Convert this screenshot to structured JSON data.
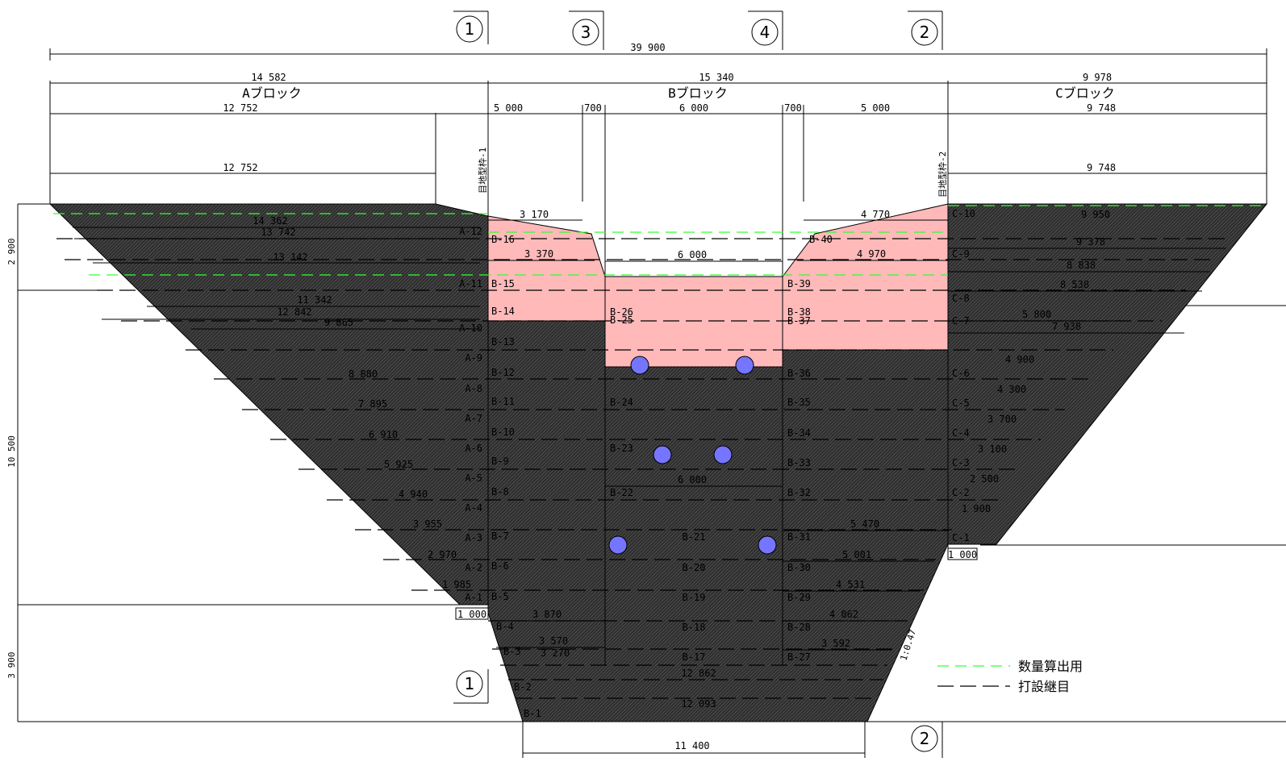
{
  "section_marks": [
    {
      "id": "mark-1-top",
      "label": "1"
    },
    {
      "id": "mark-3",
      "label": "3"
    },
    {
      "id": "mark-4",
      "label": "4"
    },
    {
      "id": "mark-2-top",
      "label": "2"
    },
    {
      "id": "mark-1-bottom",
      "label": "1"
    },
    {
      "id": "mark-2-bottom",
      "label": "2"
    }
  ],
  "top_dims": {
    "total": "39 900",
    "a_width": "14 582",
    "b_width": "15 340",
    "c_width": "9 978",
    "a_inner": "12 752",
    "a_inner2": "12 752",
    "b_left": "5 000",
    "b_gap_left": "700",
    "b_center": "6 000",
    "b_gap_right": "700",
    "b_right": "5 000",
    "c_inner": "9 748",
    "c_inner2": "9 748"
  },
  "block_titles": {
    "a": "Aブロック",
    "b": "Bブロック",
    "c": "Cブロック"
  },
  "joint_forms": {
    "left": "目地型枠-1",
    "right": "目地型枠-2"
  },
  "height_dims": {
    "top": "2 900",
    "middle": "10 500",
    "bottom": "3 900"
  },
  "a_dims": [
    "14 362",
    "13 742",
    "13 142",
    "11 342",
    "12 842",
    "9 865",
    "8 880",
    "7 895",
    "6 910",
    "5 925",
    "4 940",
    "3 955",
    "2 970",
    "1 985",
    "1 000"
  ],
  "a_lifts": [
    "A-12",
    "A-11",
    "A-10",
    "A-9",
    "A-8",
    "A-7",
    "A-6",
    "A-5",
    "A-4",
    "A-3",
    "A-2",
    "A-1"
  ],
  "b_left_lifts": [
    "B-16",
    "B-15",
    "B-14",
    "B-13",
    "B-12",
    "B-11",
    "B-10",
    "B-9",
    "B-8",
    "B-7",
    "B-6",
    "B-5",
    "B-4",
    "B-3",
    "B-2",
    "B-1"
  ],
  "b_center_lifts": [
    "B-26",
    "B-25",
    "B-24",
    "B-23",
    "B-22",
    "B-21",
    "B-20",
    "B-19",
    "B-18",
    "B-17"
  ],
  "b_right_lifts": [
    "B-40",
    "B-39",
    "B-38",
    "B-37",
    "B-36",
    "B-35",
    "B-34",
    "B-33",
    "B-32",
    "B-31",
    "B-30",
    "B-29",
    "B-28",
    "B-27"
  ],
  "c_lifts": [
    "C-10",
    "C-9",
    "C-8",
    "C-7",
    "C-6",
    "C-5",
    "C-4",
    "C-3",
    "C-2",
    "C-1"
  ],
  "b_dims": {
    "top_left": "3 170",
    "top_left2": "3 370",
    "top_center": "6 000",
    "top_right": "4 770",
    "top_right2": "4 970",
    "mid_center": "6 000",
    "r1": "5 470",
    "r2": "5 001",
    "r3": "4 531",
    "r4": "4 062",
    "r5": "3 592",
    "l1": "3 870",
    "l2": "3 570",
    "l3": "3 270",
    "b2": "12 862",
    "b1": "12 093",
    "base": "11 400"
  },
  "c_dims": [
    "9 950",
    "9 378",
    "8 838",
    "8 538",
    "5 800",
    "7 938",
    "4 900",
    "4 300",
    "3 700",
    "3 100",
    "2 500",
    "1 900",
    "1 000"
  ],
  "slope": "1:0.47",
  "legend": {
    "quantity": "数量算出用",
    "joint": "打設継目"
  },
  "colors": {
    "concrete": "#3a3a3a",
    "fill": "#ffb9b9",
    "green": "#33ff33",
    "pipe": "#7575ff"
  }
}
